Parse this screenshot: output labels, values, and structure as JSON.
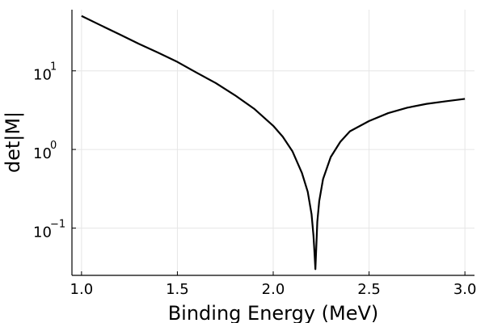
{
  "chart_data": {
    "type": "line",
    "title": "",
    "xlabel": "Binding Energy (MeV)",
    "ylabel": "det|M|",
    "xlim": [
      0.95,
      3.05
    ],
    "ylim": [
      0.025,
      60
    ],
    "y_scale": "log",
    "grid": true,
    "legend": "none",
    "x_ticks": [
      {
        "value": 1.0,
        "label": "1.0"
      },
      {
        "value": 1.5,
        "label": "1.5"
      },
      {
        "value": 2.0,
        "label": "2.0"
      },
      {
        "value": 2.5,
        "label": "2.5"
      },
      {
        "value": 3.0,
        "label": "3.0"
      }
    ],
    "y_ticks": [
      {
        "value": 0.1,
        "base": "10",
        "exponent": "−1"
      },
      {
        "value": 1,
        "base": "10",
        "exponent": "0"
      },
      {
        "value": 10,
        "base": "10",
        "exponent": "1"
      }
    ],
    "series": [
      {
        "color": "#000000",
        "x": [
          1.0,
          1.1,
          1.2,
          1.3,
          1.4,
          1.5,
          1.6,
          1.7,
          1.8,
          1.9,
          2.0,
          2.05,
          2.1,
          2.15,
          2.18,
          2.2,
          2.21,
          2.215,
          2.22,
          2.225,
          2.23,
          2.24,
          2.26,
          2.3,
          2.35,
          2.4,
          2.5,
          2.6,
          2.7,
          2.8,
          2.9,
          3.0
        ],
        "y": [
          50,
          38,
          29,
          22,
          17,
          13,
          9.5,
          7,
          4.9,
          3.3,
          2.0,
          1.45,
          0.95,
          0.5,
          0.29,
          0.15,
          0.08,
          0.05,
          0.03,
          0.06,
          0.12,
          0.22,
          0.42,
          0.8,
          1.25,
          1.7,
          2.3,
          2.9,
          3.4,
          3.8,
          4.1,
          4.4
        ]
      }
    ]
  }
}
